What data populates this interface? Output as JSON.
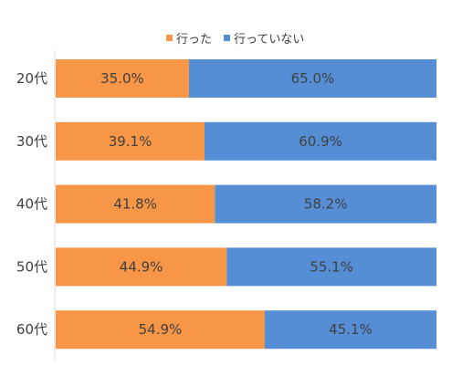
{
  "chart_data": {
    "type": "bar",
    "orientation": "horizontal",
    "stacked": "100%",
    "categories": [
      "20代",
      "30代",
      "40代",
      "50代",
      "60代"
    ],
    "series": [
      {
        "name": "行った",
        "values": [
          35.0,
          39.1,
          41.8,
          44.9,
          54.9
        ],
        "color": "#F79646"
      },
      {
        "name": "行っていない",
        "values": [
          65.0,
          60.9,
          58.2,
          55.1,
          45.1
        ],
        "color": "#558ED5"
      }
    ],
    "data_labels": [
      [
        "35.0%",
        "39.1%",
        "41.8%",
        "44.9%",
        "54.9%"
      ],
      [
        "65.0%",
        "60.9%",
        "58.2%",
        "55.1%",
        "45.1%"
      ]
    ],
    "xlim": [
      0,
      100
    ],
    "legend": "top",
    "grid": false,
    "axis_color": "#d9d9d9"
  }
}
